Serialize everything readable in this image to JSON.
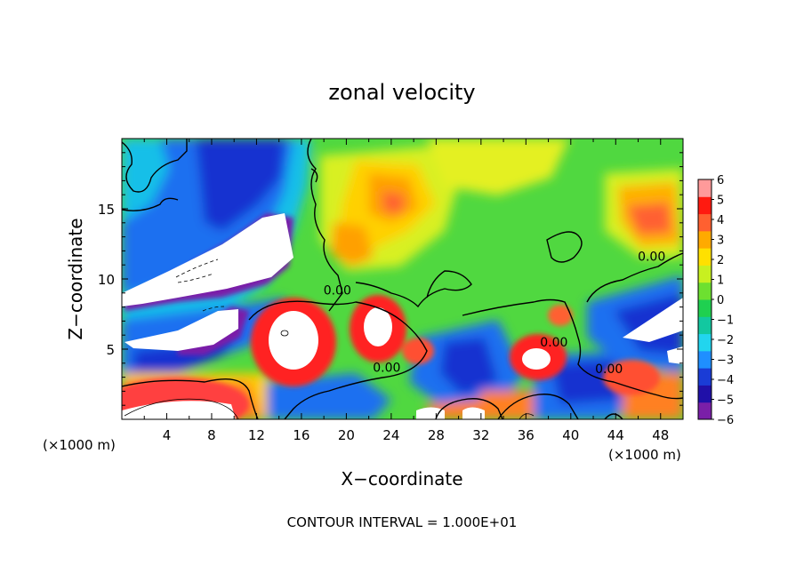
{
  "chart_data": {
    "type": "heatmap",
    "title": "zonal velocity",
    "xlabel": "X−coordinate",
    "ylabel": "Z−coordinate",
    "xunits_left": "(×1000 m)",
    "xunits_right": "(×1000 m)",
    "footer": "CONTOUR INTERVAL = 1.000E+01",
    "xlim": [
      0,
      50
    ],
    "ylim": [
      0,
      20
    ],
    "xticks": [
      4,
      8,
      12,
      16,
      20,
      24,
      28,
      32,
      36,
      40,
      44,
      48
    ],
    "yticks": [
      5,
      10,
      15
    ],
    "colorbar": {
      "ticks": [
        "6",
        "5",
        "4",
        "3",
        "2",
        "1",
        "0",
        "−1",
        "−2",
        "−3",
        "−4",
        "−5",
        "−6"
      ],
      "colors": [
        "#7a1fa8",
        "#2010a8",
        "#1a3cd6",
        "#1f8fff",
        "#22d5ee",
        "#12c8a0",
        "#1fd050",
        "#6de030",
        "#c8f020",
        "#ffe000",
        "#ffaa00",
        "#ff6030",
        "#ff1a10",
        "#ff9a9a"
      ]
    },
    "contour_labels": [
      {
        "text": "0.00",
        "x": 38.5,
        "y": 5.2
      },
      {
        "text": "0.00",
        "x": 19.2,
        "y": 8.9
      },
      {
        "text": "0.00",
        "x": 23.6,
        "y": 3.4
      },
      {
        "text": "0.00",
        "x": 47.2,
        "y": 11.3
      },
      {
        "text": "0.00",
        "x": 43.4,
        "y": 3.3
      }
    ]
  }
}
